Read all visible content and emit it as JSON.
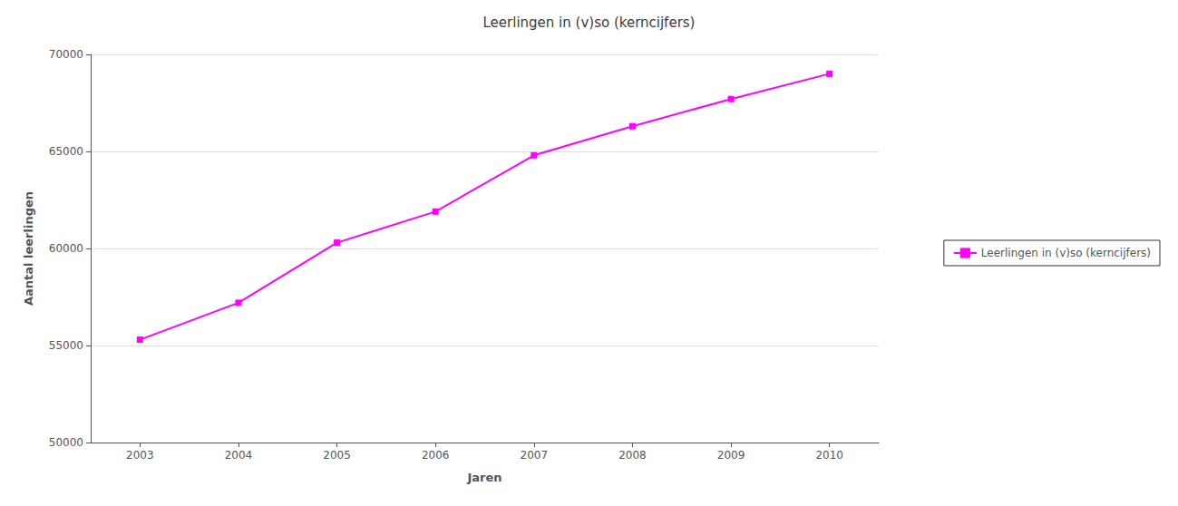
{
  "chart_data": {
    "type": "line",
    "title": "Leerlingen in (v)so (kerncijfers)",
    "xlabel": "Jaren",
    "ylabel": "Aantal leerlingen",
    "x": [
      2003,
      2004,
      2005,
      2006,
      2007,
      2008,
      2009,
      2010
    ],
    "series": [
      {
        "name": "Leerlingen in (v)so (kerncijfers)",
        "color": "#FF00FF",
        "marker": "square",
        "values": [
          55300,
          57200,
          60300,
          61900,
          64800,
          66300,
          67700,
          69000
        ]
      }
    ],
    "xlim": [
      2002.5,
      2010.5
    ],
    "xticks": [
      2003,
      2004,
      2005,
      2006,
      2007,
      2008,
      2009,
      2010
    ],
    "ylim": [
      50000,
      70000
    ],
    "yticks": [
      50000,
      55000,
      60000,
      65000,
      70000
    ],
    "grid": true,
    "legend": "right"
  }
}
